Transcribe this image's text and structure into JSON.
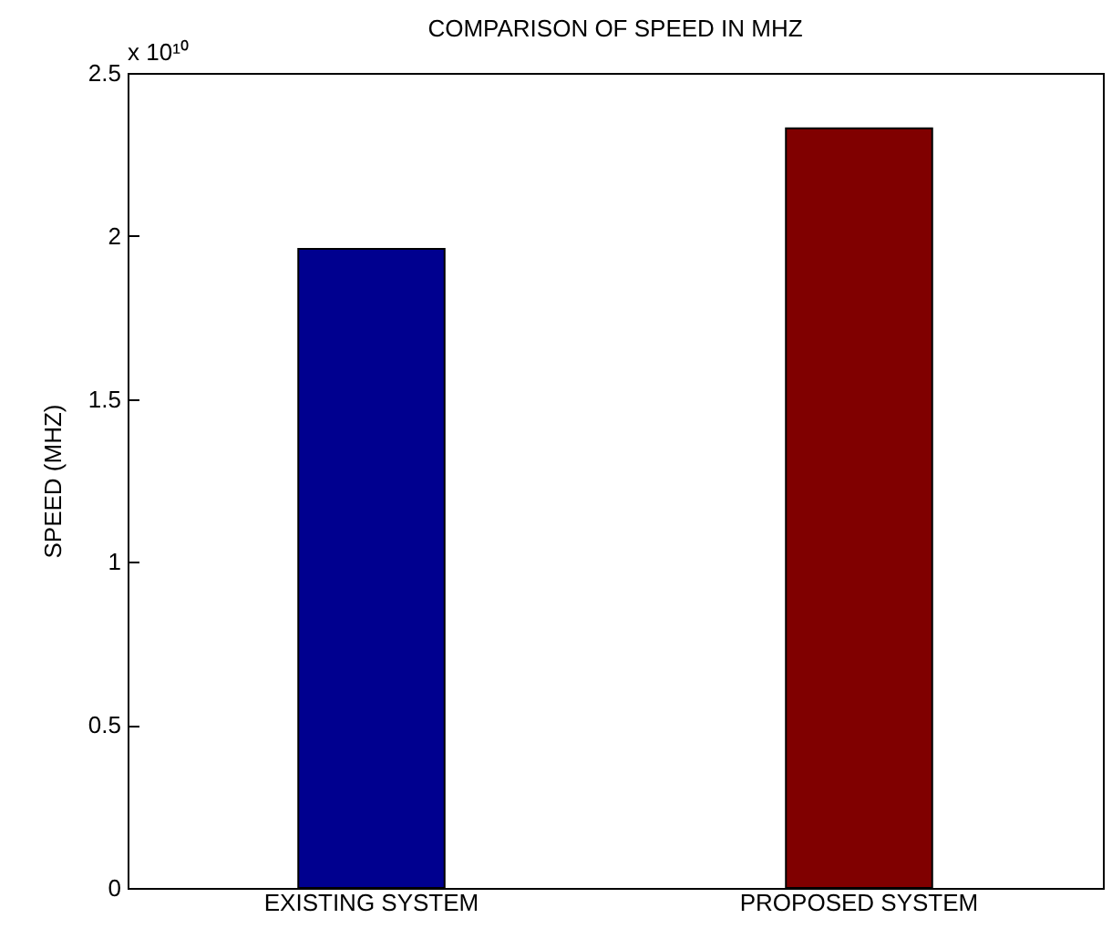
{
  "chart_data": {
    "type": "bar",
    "title": "COMPARISON OF SPEED IN MHZ",
    "ylabel": "SPEED (MHZ)",
    "categories": [
      "EXISTING SYSTEM",
      "PROPOSED SYSTEM"
    ],
    "values": [
      1.96,
      2.33
    ],
    "colors": [
      "#00008f",
      "#800000"
    ],
    "ylim": [
      0,
      2.5
    ],
    "yticks": [
      0,
      0.5,
      1,
      1.5,
      2,
      2.5
    ],
    "annotations": [
      "x 10¹⁰"
    ],
    "grid": false
  }
}
